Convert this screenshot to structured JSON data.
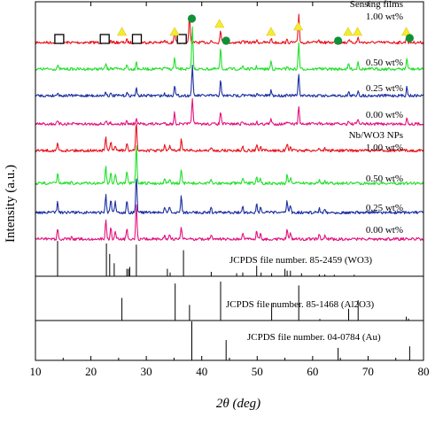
{
  "chart_data": {
    "type": "line",
    "xlabel": "2θ (deg)",
    "ylabel": "Intensity (a.u.)",
    "xlim": [
      10,
      80
    ],
    "xticks": [
      10,
      20,
      30,
      40,
      50,
      60,
      70,
      80
    ],
    "series": [
      {
        "name": "Sensing films 1.00 wt%",
        "color": "#e8131e",
        "peaks": [
          [
            14.0,
            0.08
          ],
          [
            22.7,
            0.1
          ],
          [
            23.6,
            0.05
          ],
          [
            26.5,
            0.08
          ],
          [
            28.2,
            0.12
          ],
          [
            33.3,
            0.05
          ],
          [
            35.1,
            0.35
          ],
          [
            37.8,
            0.85
          ],
          [
            41.7,
            0.05
          ],
          [
            43.4,
            0.4
          ],
          [
            47.4,
            0.08
          ],
          [
            49.9,
            0.06
          ],
          [
            52.5,
            0.12
          ],
          [
            55.4,
            0.07
          ],
          [
            57.5,
            0.85
          ],
          [
            61.2,
            0.05
          ],
          [
            64.6,
            0.1
          ],
          [
            66.5,
            0.1
          ],
          [
            68.2,
            0.15
          ],
          [
            77.0,
            0.2
          ]
        ]
      },
      {
        "name": "Sensing films 0.50 wt%",
        "color": "#22e02a",
        "peaks": [
          [
            14.0,
            0.08
          ],
          [
            22.7,
            0.12
          ],
          [
            23.6,
            0.05
          ],
          [
            26.5,
            0.1
          ],
          [
            28.2,
            0.18
          ],
          [
            33.3,
            0.05
          ],
          [
            35.1,
            0.25
          ],
          [
            38.3,
            1.0
          ],
          [
            43.4,
            0.45
          ],
          [
            47.4,
            0.08
          ],
          [
            49.9,
            0.06
          ],
          [
            52.5,
            0.18
          ],
          [
            55.4,
            0.07
          ],
          [
            57.5,
            0.6
          ],
          [
            61.2,
            0.05
          ],
          [
            66.5,
            0.12
          ],
          [
            68.2,
            0.18
          ],
          [
            77.0,
            0.25
          ]
        ]
      },
      {
        "name": "Sensing films 0.25 wt%",
        "color": "#1c2fa2",
        "peaks": [
          [
            14.0,
            0.1
          ],
          [
            22.7,
            0.12
          ],
          [
            23.6,
            0.05
          ],
          [
            26.5,
            0.08
          ],
          [
            28.2,
            0.2
          ],
          [
            33.3,
            0.05
          ],
          [
            35.1,
            0.3
          ],
          [
            38.3,
            0.85
          ],
          [
            43.4,
            0.42
          ],
          [
            47.4,
            0.07
          ],
          [
            49.9,
            0.06
          ],
          [
            52.5,
            0.15
          ],
          [
            55.4,
            0.06
          ],
          [
            57.5,
            0.6
          ],
          [
            61.2,
            0.05
          ],
          [
            66.5,
            0.1
          ],
          [
            68.2,
            0.15
          ],
          [
            77.0,
            0.25
          ]
        ]
      },
      {
        "name": "Sensing films 0.00 wt%",
        "color": "#e3127e",
        "peaks": [
          [
            14.0,
            0.08
          ],
          [
            22.7,
            0.1
          ],
          [
            23.6,
            0.05
          ],
          [
            26.5,
            0.08
          ],
          [
            28.2,
            0.15
          ],
          [
            33.3,
            0.05
          ],
          [
            35.1,
            0.35
          ],
          [
            38.3,
            0.85
          ],
          [
            43.4,
            0.4
          ],
          [
            47.4,
            0.07
          ],
          [
            49.9,
            0.06
          ],
          [
            52.5,
            0.15
          ],
          [
            55.4,
            0.06
          ],
          [
            57.5,
            0.55
          ],
          [
            61.2,
            0.05
          ],
          [
            66.5,
            0.1
          ],
          [
            68.2,
            0.15
          ],
          [
            77.0,
            0.2
          ]
        ]
      },
      {
        "name": "Nb/WO3 NPs 1.00 wt%",
        "color": "#e8131e",
        "peaks": [
          [
            14.0,
            0.25
          ],
          [
            16.5,
            0.05
          ],
          [
            22.7,
            0.5
          ],
          [
            23.6,
            0.3
          ],
          [
            24.4,
            0.2
          ],
          [
            26.5,
            0.25
          ],
          [
            28.2,
            1.0
          ],
          [
            33.3,
            0.18
          ],
          [
            34.2,
            0.15
          ],
          [
            36.3,
            0.4
          ],
          [
            41.7,
            0.1
          ],
          [
            47.4,
            0.15
          ],
          [
            49.9,
            0.22
          ],
          [
            50.6,
            0.12
          ],
          [
            55.4,
            0.25
          ],
          [
            56.0,
            0.15
          ],
          [
            61.2,
            0.1
          ],
          [
            62.2,
            0.08
          ]
        ]
      },
      {
        "name": "Nb/WO3 NPs 0.50 wt%",
        "color": "#22e02a",
        "peaks": [
          [
            14.0,
            0.25
          ],
          [
            16.5,
            0.05
          ],
          [
            22.7,
            0.45
          ],
          [
            23.6,
            0.3
          ],
          [
            24.4,
            0.25
          ],
          [
            26.5,
            0.3
          ],
          [
            28.2,
            1.0
          ],
          [
            33.3,
            0.15
          ],
          [
            34.2,
            0.12
          ],
          [
            36.3,
            0.35
          ],
          [
            41.7,
            0.1
          ],
          [
            47.4,
            0.12
          ],
          [
            49.9,
            0.2
          ],
          [
            50.6,
            0.12
          ],
          [
            55.4,
            0.25
          ],
          [
            56.0,
            0.15
          ],
          [
            61.2,
            0.1
          ],
          [
            62.2,
            0.08
          ]
        ]
      },
      {
        "name": "Nb/WO3 NPs 0.25 wt%",
        "color": "#1c2fa2",
        "peaks": [
          [
            14.0,
            0.3
          ],
          [
            16.5,
            0.05
          ],
          [
            22.7,
            0.5
          ],
          [
            23.6,
            0.35
          ],
          [
            24.4,
            0.3
          ],
          [
            26.5,
            0.35
          ],
          [
            28.2,
            1.0
          ],
          [
            33.3,
            0.15
          ],
          [
            34.2,
            0.15
          ],
          [
            36.3,
            0.45
          ],
          [
            41.7,
            0.12
          ],
          [
            47.4,
            0.15
          ],
          [
            49.9,
            0.25
          ],
          [
            50.6,
            0.15
          ],
          [
            55.4,
            0.3
          ],
          [
            56.0,
            0.2
          ],
          [
            61.2,
            0.12
          ],
          [
            62.2,
            0.1
          ]
        ]
      },
      {
        "name": "Nb/WO3 NPs 0.00 wt%",
        "color": "#e3127e",
        "peaks": [
          [
            14.0,
            0.3
          ],
          [
            16.5,
            0.05
          ],
          [
            22.7,
            0.55
          ],
          [
            23.6,
            0.35
          ],
          [
            24.4,
            0.25
          ],
          [
            26.5,
            0.3
          ],
          [
            28.2,
            1.0
          ],
          [
            33.3,
            0.15
          ],
          [
            34.2,
            0.15
          ],
          [
            36.3,
            0.35
          ],
          [
            41.7,
            0.12
          ],
          [
            47.4,
            0.15
          ],
          [
            49.9,
            0.25
          ],
          [
            50.6,
            0.15
          ],
          [
            55.4,
            0.3
          ],
          [
            56.0,
            0.2
          ],
          [
            61.2,
            0.12
          ],
          [
            62.2,
            0.1
          ]
        ]
      }
    ],
    "labels": [
      {
        "series": 0,
        "lines": [
          "Sensing films",
          "1.00 wt%"
        ]
      },
      {
        "series": 1,
        "lines": [
          "0.50 wt%"
        ]
      },
      {
        "series": 2,
        "lines": [
          "0.25 wt%"
        ]
      },
      {
        "series": 3,
        "lines": [
          "0.00 wt%"
        ]
      },
      {
        "series": 4,
        "lines": [
          "Nb/WO3 NPs",
          "1.00 wt%"
        ]
      },
      {
        "series": 5,
        "lines": [
          "0.50 wt%"
        ]
      },
      {
        "series": 6,
        "lines": [
          "0.25 wt%"
        ]
      },
      {
        "series": 7,
        "lines": [
          "0.00 wt%"
        ]
      }
    ],
    "reference_patterns": [
      {
        "name": "JCPDS file number. 85-2459 (WO3)",
        "lines": [
          [
            14.0,
            0.95
          ],
          [
            22.8,
            0.88
          ],
          [
            23.4,
            0.6
          ],
          [
            24.2,
            0.35
          ],
          [
            26.5,
            0.2
          ],
          [
            26.8,
            0.2
          ],
          [
            27.0,
            0.25
          ],
          [
            28.2,
            0.85
          ],
          [
            33.8,
            0.2
          ],
          [
            34.3,
            0.1
          ],
          [
            36.7,
            0.7
          ],
          [
            41.7,
            0.12
          ],
          [
            46.3,
            0.08
          ],
          [
            47.4,
            0.1
          ],
          [
            49.9,
            0.28
          ],
          [
            50.7,
            0.1
          ],
          [
            52.6,
            0.08
          ],
          [
            55.0,
            0.2
          ],
          [
            55.4,
            0.15
          ],
          [
            56.0,
            0.15
          ],
          [
            58.0,
            0.08
          ],
          [
            61.2,
            0.05
          ],
          [
            62.2,
            0.05
          ],
          [
            63.9,
            0.04
          ],
          [
            67.5,
            0.04
          ]
        ]
      },
      {
        "name": "JCPDS file number. 85-1468 (Al2O3)",
        "lines": [
          [
            25.6,
            0.58
          ],
          [
            35.2,
            0.95
          ],
          [
            37.8,
            0.4
          ],
          [
            43.4,
            1.0
          ],
          [
            52.6,
            0.45
          ],
          [
            57.5,
            0.9
          ],
          [
            61.3,
            0.04
          ],
          [
            66.5,
            0.3
          ],
          [
            68.2,
            0.52
          ],
          [
            76.9,
            0.1
          ],
          [
            77.3,
            0.05
          ]
        ]
      },
      {
        "name": "JCPDS file number. 04-0784 (Au)",
        "lines": [
          [
            38.2,
            1.0
          ],
          [
            44.4,
            0.52
          ],
          [
            64.6,
            0.32
          ],
          [
            77.5,
            0.36
          ]
        ]
      }
    ],
    "markers": [
      {
        "symbol": "square",
        "x": [
          14.3,
          22.5,
          28.3,
          36.4
        ]
      },
      {
        "symbol": "triangle",
        "x": [
          25.6,
          35.1,
          43.2,
          52.5,
          57.4,
          66.4,
          68.1,
          76.9
        ]
      },
      {
        "symbol": "circle",
        "x": [
          38.2,
          44.4,
          64.6,
          77.5
        ]
      }
    ]
  }
}
